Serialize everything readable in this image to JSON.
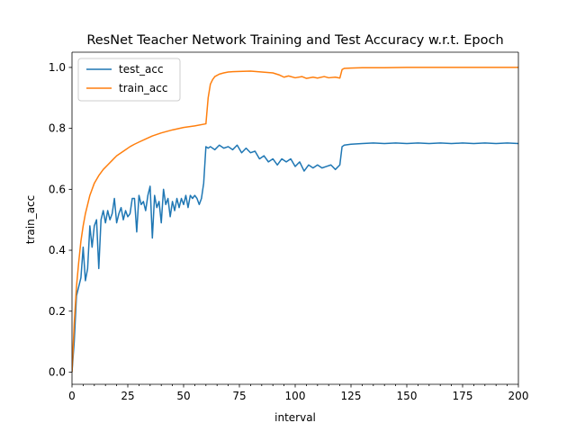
{
  "chart_data": {
    "type": "line",
    "title": "ResNet Teacher Network Training and Test Accuracy w.r.t. Epoch",
    "xlabel": "interval",
    "ylabel": "train_acc",
    "xlim": [
      0,
      200
    ],
    "ylim": [
      -0.04,
      1.05
    ],
    "xticks": [
      0,
      25,
      50,
      75,
      100,
      125,
      150,
      175,
      200
    ],
    "yticks": [
      0.0,
      0.2,
      0.4,
      0.6,
      0.8,
      1.0
    ],
    "xtick_labels": [
      "0",
      "25",
      "50",
      "75",
      "100",
      "125",
      "150",
      "175",
      "200"
    ],
    "ytick_labels": [
      "0.0",
      "0.2",
      "0.4",
      "0.6",
      "0.8",
      "1.0"
    ],
    "grid": false,
    "legend_position": "top-left",
    "series": [
      {
        "name": "test_acc",
        "color": "#1f77b4",
        "x": [
          0,
          1,
          2,
          3,
          4,
          5,
          6,
          7,
          8,
          9,
          10,
          11,
          12,
          13,
          14,
          15,
          16,
          17,
          18,
          19,
          20,
          21,
          22,
          23,
          24,
          25,
          26,
          27,
          28,
          29,
          30,
          31,
          32,
          33,
          34,
          35,
          36,
          37,
          38,
          39,
          40,
          41,
          42,
          43,
          44,
          45,
          46,
          47,
          48,
          49,
          50,
          51,
          52,
          53,
          54,
          55,
          56,
          57,
          58,
          59,
          60,
          61,
          62,
          64,
          66,
          68,
          70,
          72,
          74,
          76,
          78,
          80,
          82,
          84,
          86,
          88,
          90,
          92,
          94,
          96,
          98,
          100,
          102,
          104,
          106,
          108,
          110,
          112,
          114,
          116,
          118,
          120,
          121,
          122,
          125,
          130,
          135,
          140,
          145,
          150,
          155,
          160,
          165,
          170,
          175,
          180,
          185,
          190,
          195,
          200
        ],
        "values": [
          0.0,
          0.1,
          0.25,
          0.28,
          0.31,
          0.41,
          0.3,
          0.34,
          0.48,
          0.41,
          0.48,
          0.5,
          0.34,
          0.5,
          0.53,
          0.49,
          0.53,
          0.5,
          0.52,
          0.57,
          0.49,
          0.52,
          0.54,
          0.5,
          0.53,
          0.51,
          0.52,
          0.57,
          0.57,
          0.46,
          0.58,
          0.55,
          0.56,
          0.53,
          0.58,
          0.61,
          0.44,
          0.58,
          0.54,
          0.56,
          0.49,
          0.6,
          0.55,
          0.57,
          0.51,
          0.56,
          0.53,
          0.57,
          0.54,
          0.57,
          0.55,
          0.58,
          0.54,
          0.58,
          0.57,
          0.58,
          0.57,
          0.55,
          0.57,
          0.62,
          0.74,
          0.735,
          0.74,
          0.73,
          0.745,
          0.735,
          0.74,
          0.73,
          0.745,
          0.72,
          0.735,
          0.72,
          0.725,
          0.7,
          0.71,
          0.69,
          0.7,
          0.68,
          0.7,
          0.69,
          0.7,
          0.675,
          0.69,
          0.66,
          0.68,
          0.67,
          0.68,
          0.67,
          0.675,
          0.68,
          0.665,
          0.68,
          0.74,
          0.745,
          0.748,
          0.75,
          0.752,
          0.75,
          0.752,
          0.75,
          0.752,
          0.75,
          0.752,
          0.75,
          0.752,
          0.75,
          0.752,
          0.75,
          0.752,
          0.75
        ]
      },
      {
        "name": "train_acc",
        "color": "#ff7f0e",
        "x": [
          0,
          1,
          2,
          3,
          4,
          5,
          6,
          7,
          8,
          9,
          10,
          12,
          14,
          16,
          18,
          20,
          22,
          24,
          26,
          28,
          30,
          33,
          36,
          40,
          45,
          50,
          55,
          60,
          61,
          62,
          63,
          64,
          66,
          68,
          70,
          72,
          75,
          80,
          85,
          90,
          93,
          95,
          97,
          100,
          103,
          105,
          108,
          110,
          113,
          115,
          118,
          120,
          121,
          122,
          125,
          130,
          140,
          150,
          160,
          170,
          180,
          190,
          200
        ],
        "values": [
          0.0,
          0.16,
          0.28,
          0.36,
          0.43,
          0.48,
          0.52,
          0.55,
          0.58,
          0.6,
          0.62,
          0.645,
          0.665,
          0.68,
          0.695,
          0.71,
          0.72,
          0.73,
          0.74,
          0.748,
          0.755,
          0.765,
          0.775,
          0.785,
          0.795,
          0.803,
          0.808,
          0.815,
          0.9,
          0.945,
          0.96,
          0.97,
          0.978,
          0.982,
          0.985,
          0.986,
          0.987,
          0.988,
          0.985,
          0.982,
          0.975,
          0.968,
          0.972,
          0.966,
          0.97,
          0.964,
          0.968,
          0.965,
          0.97,
          0.966,
          0.968,
          0.965,
          0.993,
          0.997,
          0.998,
          0.999,
          0.999,
          1.0,
          1.0,
          1.0,
          1.0,
          1.0,
          1.0
        ]
      }
    ]
  }
}
